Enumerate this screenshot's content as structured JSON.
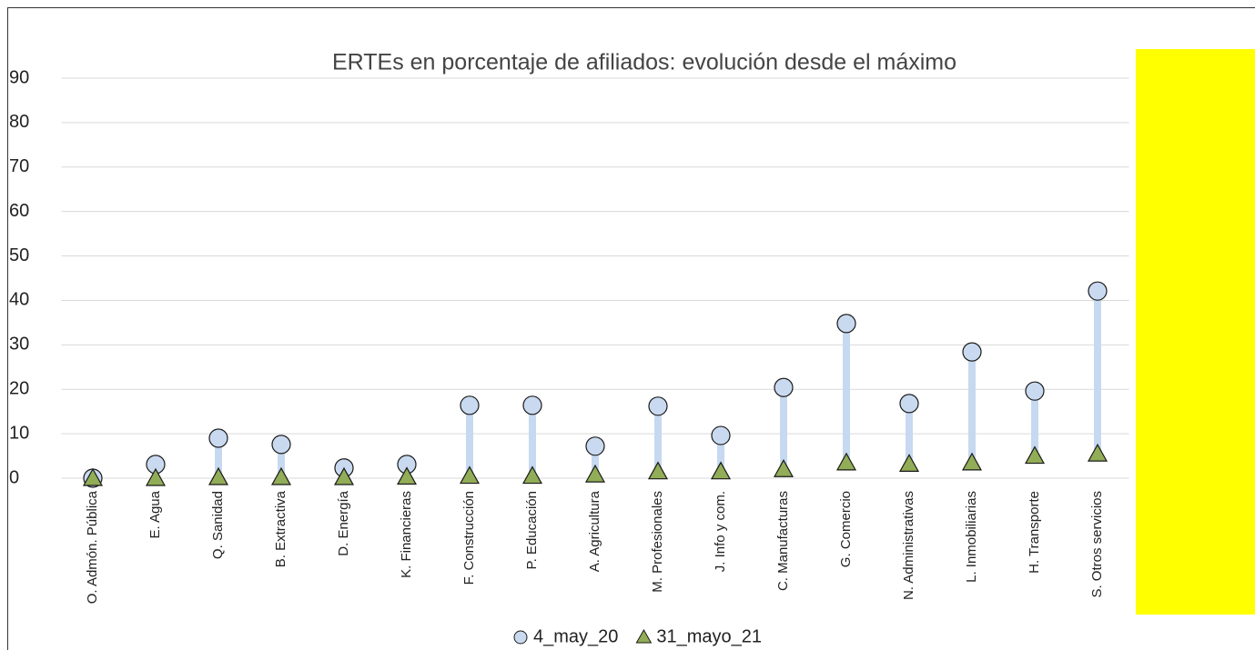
{
  "chart_data": {
    "type": "dumbbell",
    "title": "ERTEs en porcentaje de afiliados: evolución desde el máximo",
    "categories": [
      "O. Admón. Pública",
      "E. Agua",
      "Q. Sanidad",
      "B. Extractiva",
      "D. Energía",
      "K. Financieras",
      "F. Construcción",
      "P. Educación",
      "A. Agricultura",
      "M. Profesionales",
      "J. Info y com.",
      "C. Manufacturas",
      "G. Comercio",
      "N. Administrativas",
      "L. Inmobiliarias",
      "H. Transporte",
      "S. Otros servicios"
    ],
    "series": [
      {
        "name": "4_may_20",
        "color": "#c9daf0",
        "marker": "circle",
        "values": [
          0,
          3.1,
          9.0,
          7.6,
          2.3,
          3.1,
          16.4,
          16.4,
          7.2,
          16.2,
          9.6,
          20.4,
          34.8,
          16.8,
          28.4,
          19.6,
          42.1
        ]
      },
      {
        "name": "31_mayo_21",
        "color": "#92ad57",
        "marker": "triangle",
        "values": [
          0,
          0,
          0.2,
          0.2,
          0.2,
          0.3,
          0.5,
          0.5,
          0.8,
          1.5,
          1.5,
          2.0,
          3.5,
          3.2,
          3.5,
          5.0,
          5.5
        ]
      }
    ],
    "connector_color": "#c6d9f0",
    "ylim": [
      0,
      90
    ],
    "yticks": [
      0,
      10,
      20,
      30,
      40,
      50,
      60,
      70,
      80,
      90
    ],
    "grid": true,
    "legend": "bottom"
  }
}
